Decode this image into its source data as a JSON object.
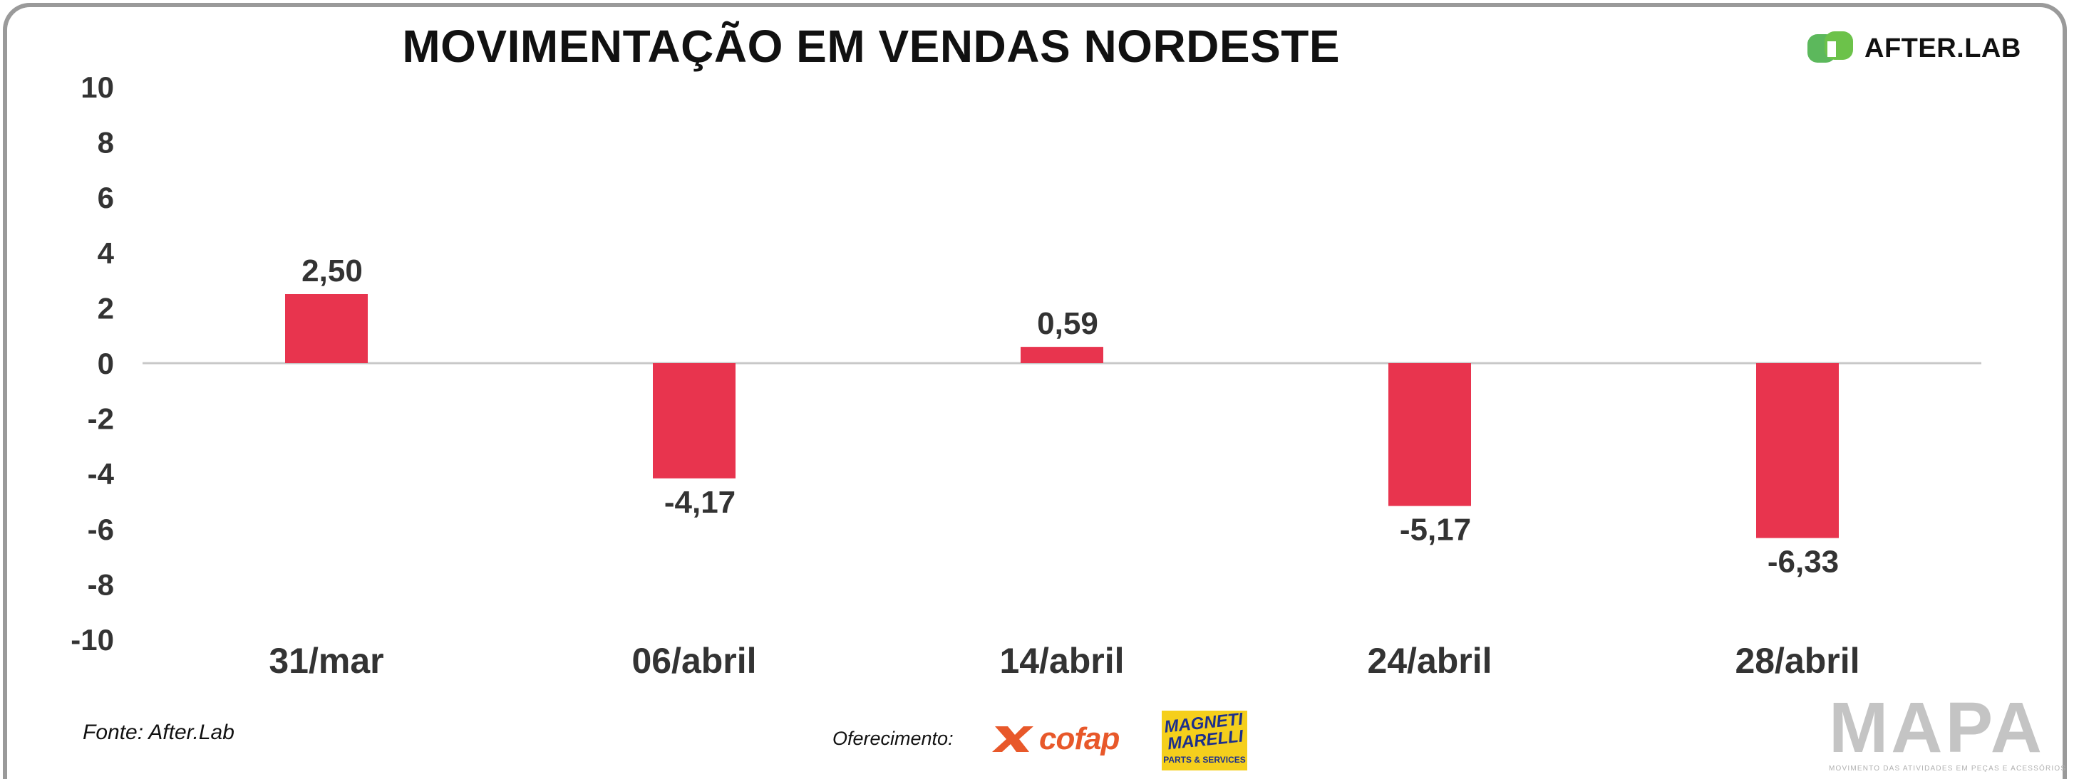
{
  "chart_data": {
    "type": "bar",
    "title": "MOVIMENTAÇÃO EM VENDAS NORDESTE",
    "categories": [
      "31/mar",
      "06/abril",
      "14/abril",
      "24/abril",
      "28/abril"
    ],
    "values": [
      2.5,
      -4.17,
      0.59,
      -5.17,
      -6.33
    ],
    "data_labels": [
      "2,50",
      "-4,17",
      "0,59",
      "-5,17",
      "-6,33"
    ],
    "ylim": [
      -10,
      10
    ],
    "yticks": [
      "10",
      "8",
      "6",
      "4",
      "2",
      "0",
      "-2",
      "-4",
      "-6",
      "-8",
      "-10"
    ],
    "ytick_values": [
      10,
      8,
      6,
      4,
      2,
      0,
      -2,
      -4,
      -6,
      -8,
      -10
    ],
    "xlabel": "",
    "ylabel": "",
    "grid": false,
    "legend": "none",
    "bar_color": "#e8344e"
  },
  "brand": {
    "name": "AFTER.LAB",
    "icon": "afterlab-logo-icon",
    "color": "#5cb85c"
  },
  "footer": {
    "source": "Fonte: After.Lab",
    "offer_label": "Oferecimento:",
    "sponsor1": "cofap",
    "sponsor2_top": "MAGNETI MARELLI",
    "sponsor2_bottom": "PARTS & SERVICES",
    "mapa_title": "MAPA",
    "mapa_subtitle": "MOVIMENTO DAS ATIVIDADES EM PEÇAS E ACESSÓRIOS"
  }
}
